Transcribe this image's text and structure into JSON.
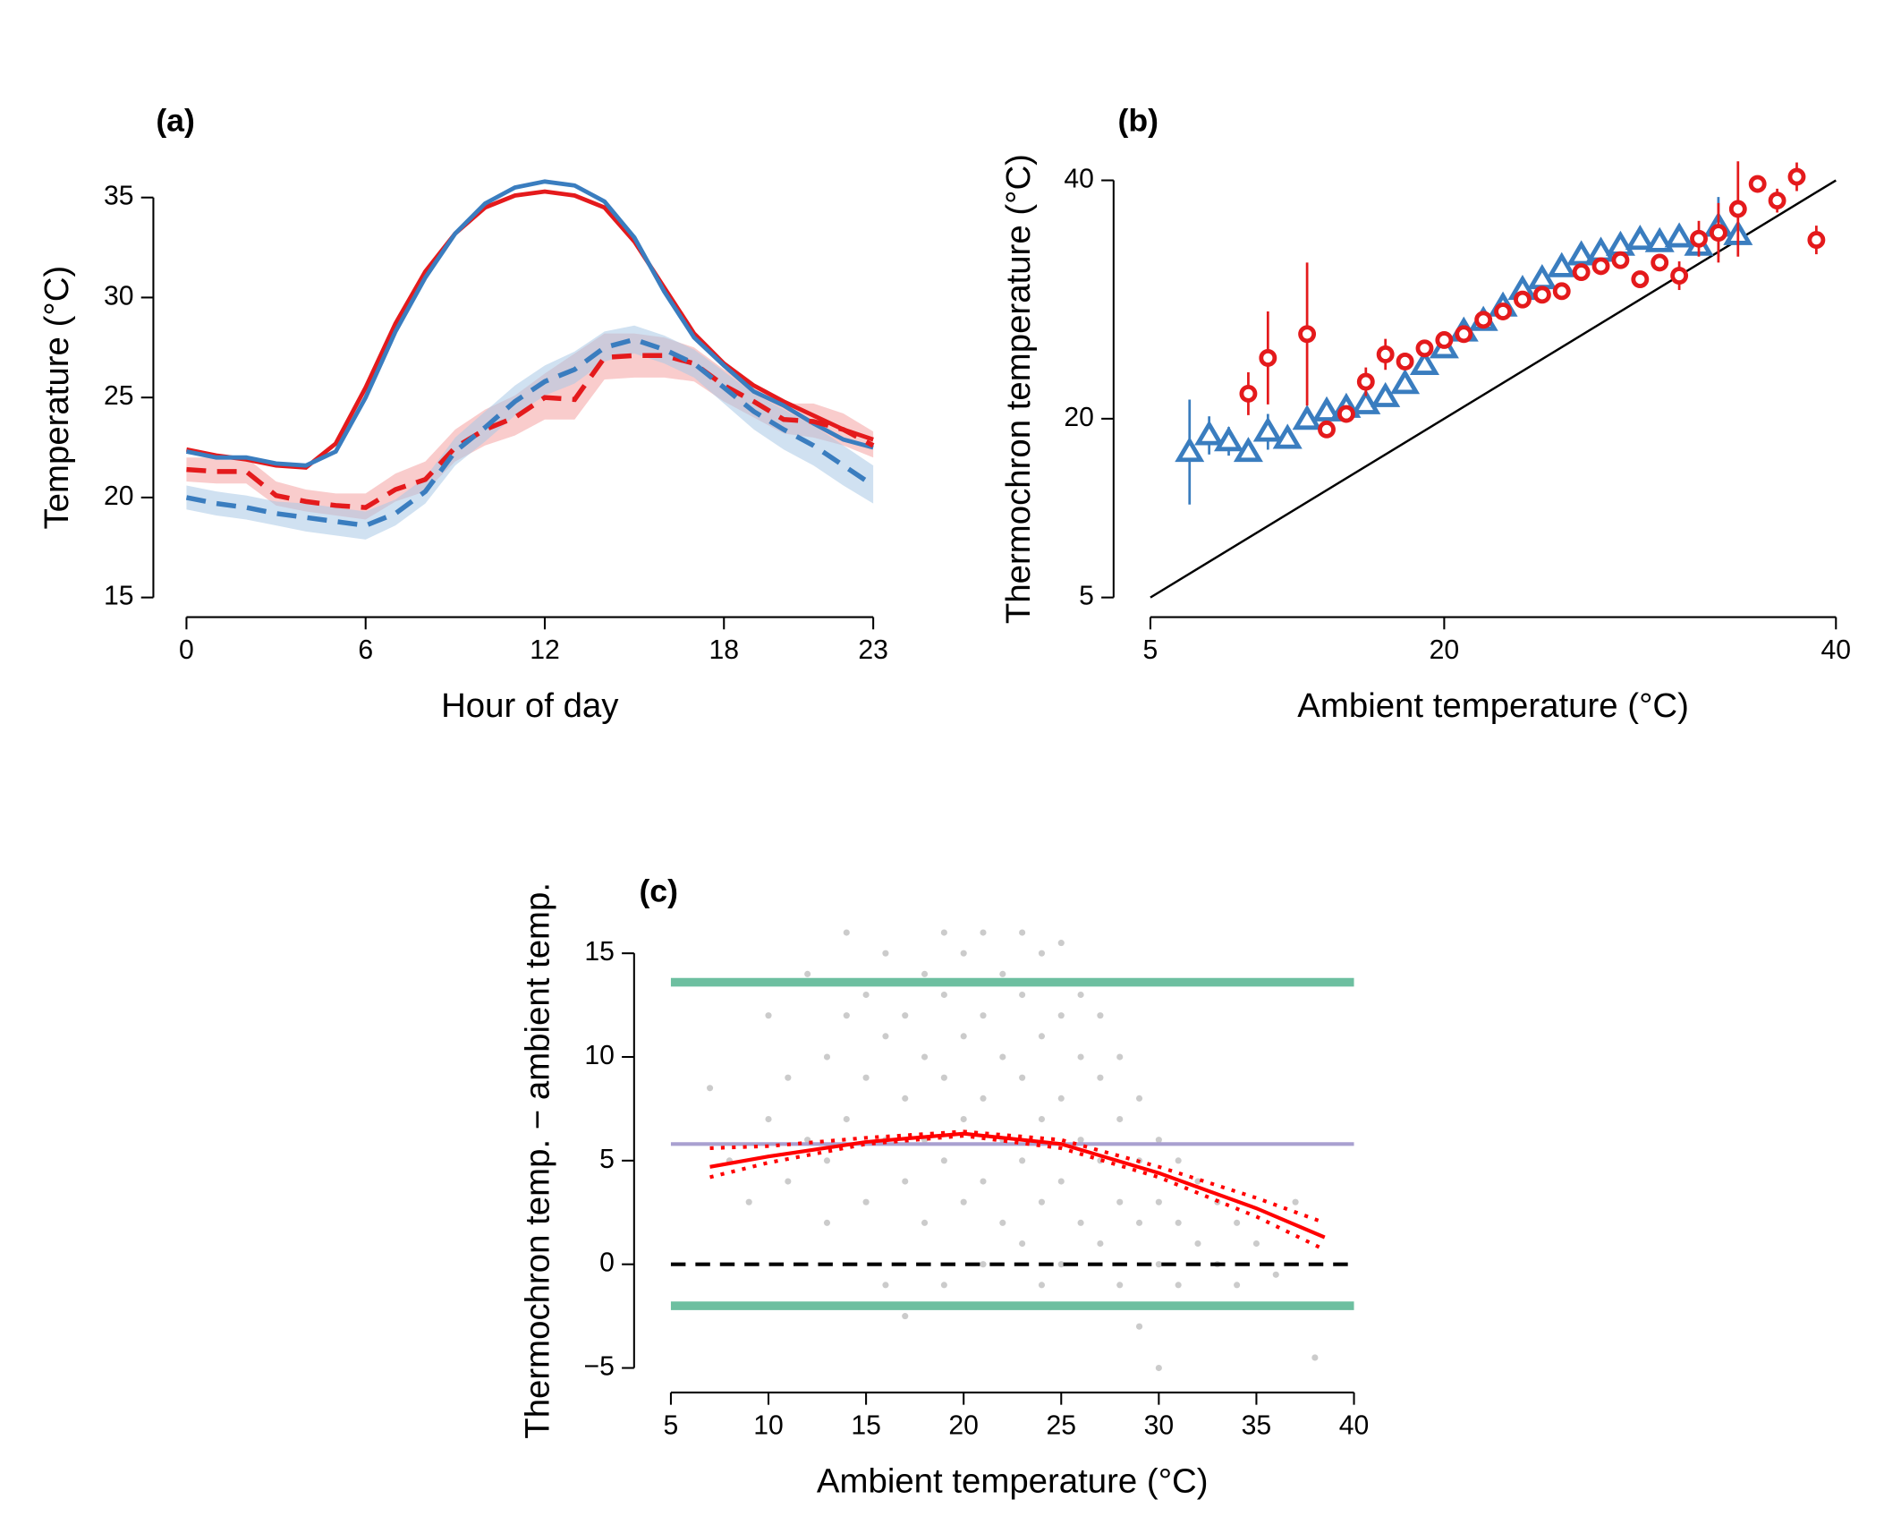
{
  "chart_data": [
    {
      "type": "line",
      "title": "(a)",
      "xlabel": "Hour of day",
      "ylabel": "Temperature (°C)",
      "x": [
        0,
        1,
        2,
        3,
        4,
        5,
        6,
        7,
        8,
        9,
        10,
        11,
        12,
        13,
        14,
        15,
        16,
        17,
        18,
        19,
        20,
        21,
        22,
        23
      ],
      "xlim": [
        0,
        23
      ],
      "xticks": [
        0,
        6,
        12,
        18,
        23
      ],
      "ylim": [
        15,
        35
      ],
      "yticks": [
        15,
        20,
        25,
        30,
        35
      ],
      "series": [
        {
          "color": "#e41a1c",
          "dash": false,
          "values": [
            22.4,
            22.1,
            21.9,
            21.6,
            21.5,
            22.7,
            25.5,
            28.7,
            31.3,
            33.2,
            34.5,
            35.1,
            35.3,
            35.1,
            34.5,
            32.8,
            30.5,
            28.2,
            26.7,
            25.6,
            24.8,
            24.1,
            23.4,
            22.9
          ]
        },
        {
          "color": "#3a7dbf",
          "dash": false,
          "values": [
            22.3,
            22.0,
            22.0,
            21.7,
            21.6,
            22.3,
            25.0,
            28.3,
            31.0,
            33.2,
            34.7,
            35.5,
            35.8,
            35.6,
            34.8,
            33.0,
            30.3,
            28.0,
            26.6,
            25.3,
            24.6,
            23.7,
            22.9,
            22.5
          ]
        },
        {
          "color": "#e41a1c",
          "dash": true,
          "band_color": "#f4a3a3",
          "values": [
            21.4,
            21.3,
            21.3,
            20.1,
            19.8,
            19.6,
            19.5,
            20.4,
            20.9,
            22.5,
            23.4,
            24.0,
            25.0,
            24.9,
            27.0,
            27.1,
            27.1,
            26.7,
            25.6,
            24.8,
            23.9,
            23.8,
            23.4,
            22.6
          ],
          "lower": [
            20.8,
            20.7,
            20.7,
            19.6,
            19.3,
            19.1,
            18.9,
            19.8,
            20.3,
            21.8,
            22.6,
            23.1,
            23.9,
            23.9,
            25.9,
            26.0,
            26.0,
            25.8,
            24.8,
            24.0,
            23.2,
            23.0,
            22.6,
            22.0
          ],
          "upper": [
            22.0,
            22.0,
            22.0,
            20.8,
            20.4,
            20.2,
            20.2,
            21.2,
            21.8,
            23.4,
            24.4,
            25.1,
            26.2,
            27.2,
            28.2,
            28.2,
            28.0,
            27.5,
            26.4,
            25.6,
            24.7,
            24.7,
            24.2,
            23.3
          ]
        },
        {
          "color": "#3a7dbf",
          "dash": true,
          "band_color": "#a9c8e6",
          "values": [
            20.0,
            19.7,
            19.5,
            19.2,
            19.0,
            18.8,
            18.6,
            19.2,
            20.3,
            22.3,
            23.5,
            24.8,
            25.8,
            26.4,
            27.5,
            27.9,
            27.4,
            26.7,
            25.5,
            24.3,
            23.4,
            22.6,
            21.6,
            20.6
          ],
          "lower": [
            19.4,
            19.1,
            18.9,
            18.6,
            18.3,
            18.1,
            17.9,
            18.6,
            19.7,
            21.6,
            22.8,
            24.1,
            25.1,
            25.7,
            26.8,
            27.2,
            26.7,
            26.0,
            24.7,
            23.4,
            22.4,
            21.6,
            20.6,
            19.7
          ],
          "upper": [
            20.6,
            20.3,
            20.1,
            19.8,
            19.7,
            19.5,
            19.3,
            19.9,
            21.0,
            23.0,
            24.3,
            25.6,
            26.6,
            27.3,
            28.3,
            28.6,
            28.1,
            27.4,
            26.3,
            25.2,
            24.4,
            23.6,
            22.6,
            21.6
          ]
        }
      ]
    },
    {
      "type": "scatter",
      "title": "(b)",
      "xlabel": "Ambient temperature (°C)",
      "ylabel": "Thermochron temperature (°C)",
      "xlim": [
        5,
        40
      ],
      "xticks": [
        5,
        20,
        40
      ],
      "ylim": [
        5,
        40
      ],
      "yticks": [
        5,
        20,
        40
      ],
      "identity_line": true,
      "series": [
        {
          "color": "#3a7dbf",
          "marker": "triangle",
          "x": [
            7,
            8,
            9,
            10,
            11,
            12,
            13,
            14,
            15,
            16,
            17,
            18,
            19,
            20,
            21,
            22,
            23,
            24,
            25,
            26,
            27,
            28,
            29,
            30,
            31,
            32,
            33,
            34,
            35
          ],
          "values": [
            17.2,
            18.6,
            18.1,
            17.2,
            18.9,
            18.3,
            19.9,
            20.6,
            20.9,
            21.2,
            21.8,
            22.9,
            24.5,
            25.9,
            27.3,
            28.2,
            29.4,
            30.8,
            31.7,
            32.7,
            33.7,
            34.0,
            34.5,
            35.0,
            34.8,
            35.2,
            34.5,
            36.1,
            35.4
          ],
          "errors": [
            4.4,
            1.6,
            1.2,
            0.6,
            1.5,
            0.5,
            0.3,
            0.3,
            0.3,
            0.3,
            0.3,
            0.3,
            0.3,
            0.3,
            0.3,
            0.3,
            0.3,
            0.3,
            0.3,
            0.3,
            0.3,
            0.3,
            0.3,
            0.3,
            0.3,
            0.3,
            0.3,
            2.5,
            0.3
          ]
        },
        {
          "color": "#e41a1c",
          "marker": "circle",
          "x": [
            10,
            11,
            13,
            14,
            15,
            16,
            17,
            18,
            19,
            20,
            21,
            22,
            23,
            24,
            25,
            26,
            27,
            28,
            29,
            30,
            31,
            32,
            33,
            34,
            35,
            36,
            37,
            38,
            39
          ],
          "values": [
            22.1,
            25.1,
            27.1,
            19.1,
            20.4,
            23.1,
            25.4,
            24.8,
            25.9,
            26.6,
            27.1,
            28.3,
            29.0,
            30.0,
            30.4,
            30.7,
            32.3,
            32.8,
            33.3,
            31.7,
            33.1,
            32.0,
            35.1,
            35.6,
            37.6,
            39.7,
            38.3,
            40.3,
            35.0
          ],
          "errors": [
            1.8,
            3.9,
            6.0,
            0.5,
            0.6,
            1.2,
            1.3,
            0.6,
            0.6,
            0.6,
            0.6,
            0.6,
            0.6,
            0.6,
            0.6,
            0.6,
            0.6,
            0.6,
            0.6,
            0.6,
            0.6,
            1.2,
            1.5,
            2.5,
            4.0,
            0.6,
            1.0,
            1.2,
            1.2
          ]
        }
      ]
    },
    {
      "type": "scatter",
      "title": "(c)",
      "xlabel": "Ambient temperature (°C)",
      "ylabel": "Thermochron temp. − ambient temp.",
      "xlim": [
        5,
        40
      ],
      "xticks": [
        5,
        10,
        15,
        20,
        25,
        30,
        35,
        40
      ],
      "ylim": [
        -5,
        15
      ],
      "yticks": [
        {
          "value": -5,
          "label": "−5"
        },
        0,
        5,
        10,
        15
      ],
      "series": [
        {
          "color": "#a8a8a8",
          "marker": "point",
          "x": [
            7,
            8,
            9,
            10,
            10,
            11,
            11,
            12,
            12,
            13,
            13,
            13,
            14,
            14,
            14,
            15,
            15,
            15,
            16,
            16,
            16,
            16,
            17,
            17,
            17,
            17,
            18,
            18,
            18,
            18,
            19,
            19,
            19,
            19,
            19,
            20,
            20,
            20,
            20,
            21,
            21,
            21,
            21,
            21,
            22,
            22,
            22,
            22,
            22,
            23,
            23,
            23,
            23,
            23,
            24,
            24,
            24,
            24,
            24,
            25,
            25,
            25,
            25,
            25,
            26,
            26,
            26,
            26,
            26,
            27,
            27,
            27,
            27,
            28,
            28,
            28,
            28,
            29,
            29,
            29,
            29,
            30,
            30,
            30,
            30,
            31,
            31,
            31,
            32,
            32,
            32,
            33,
            33,
            34,
            34,
            35,
            36,
            37,
            38
          ],
          "values": [
            8.5,
            5,
            3,
            12,
            7,
            9,
            4,
            6,
            14,
            10,
            5,
            2,
            7,
            12,
            16,
            3,
            9,
            13,
            6,
            11,
            -1,
            15,
            4,
            8,
            -2.5,
            12,
            2,
            6,
            10,
            14,
            -1,
            5,
            9,
            13,
            16,
            3,
            7,
            11,
            15,
            0,
            4,
            8,
            12,
            16,
            -2,
            2,
            6,
            10,
            14,
            1,
            5,
            9,
            13,
            16,
            -1,
            3,
            7,
            11,
            15,
            0,
            4,
            8,
            12,
            15.5,
            -2,
            2,
            6,
            10,
            13,
            1,
            5,
            9,
            12,
            -1,
            3,
            7,
            10,
            -3,
            2,
            5,
            8,
            -5,
            0,
            3,
            6,
            -1,
            2,
            5,
            -2,
            1,
            4,
            0,
            3,
            -1,
            2,
            1,
            -0.5,
            3,
            -4.5
          ]
        }
      ],
      "hlines": [
        {
          "value": 13.6,
          "color": "#6dbfa0",
          "style": "thick"
        },
        {
          "value": 5.8,
          "color": "#a9a0d0",
          "style": "thin"
        },
        {
          "value": 0,
          "color": "#000000",
          "style": "dashed"
        },
        {
          "value": -2,
          "color": "#6dbfa0",
          "style": "thick"
        }
      ],
      "fit": {
        "color": "#ff0000",
        "x": [
          7,
          10,
          15,
          20,
          25,
          30,
          35,
          38.5
        ],
        "values": [
          4.7,
          5.2,
          5.9,
          6.3,
          5.8,
          4.4,
          2.7,
          1.3
        ],
        "lower": [
          4.2,
          4.9,
          5.8,
          6.2,
          5.6,
          4.2,
          2.3,
          0.7
        ],
        "upper": [
          5.6,
          5.7,
          6.1,
          6.4,
          6.0,
          4.7,
          3.2,
          2.0
        ]
      }
    }
  ]
}
